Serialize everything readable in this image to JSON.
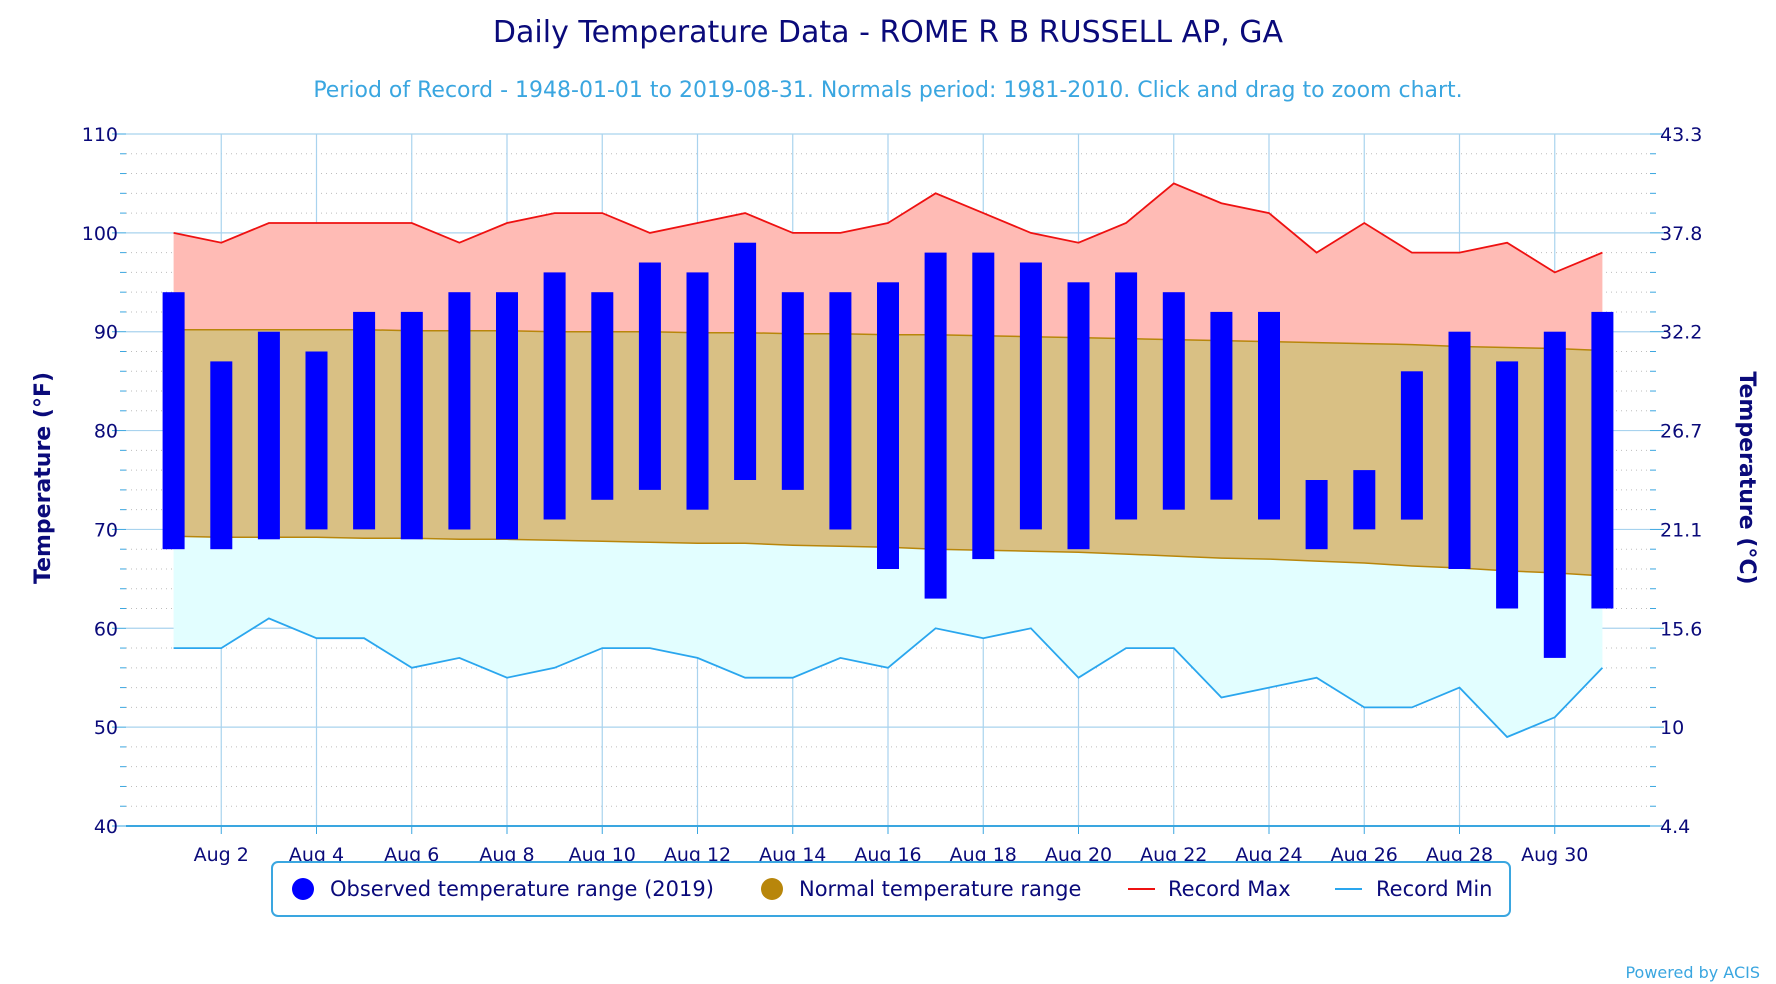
{
  "chart_data": {
    "type": "bar",
    "title": "Daily Temperature Data - ROME R B RUSSELL AP, GA",
    "subtitle": "Period of Record - 1948-01-01 to 2019-08-31. Normals period: 1981-2010. Click and drag to zoom chart.",
    "ylabel": "Temperature (°F)",
    "ylabel_right": "Temperature (°C)",
    "ylim": [
      40,
      110
    ],
    "y_ticks": [
      40,
      50,
      60,
      70,
      80,
      90,
      100,
      110
    ],
    "y_ticks_right": [
      "4.4",
      "10",
      "15.6",
      "21.1",
      "26.7",
      "32.2",
      "37.8",
      "43.3"
    ],
    "x_tick_days": [
      2,
      4,
      6,
      8,
      10,
      12,
      14,
      16,
      18,
      20,
      22,
      24,
      26,
      28,
      30
    ],
    "x_tick_labels": [
      "Aug 2",
      "Aug 4",
      "Aug 6",
      "Aug 8",
      "Aug 10",
      "Aug 12",
      "Aug 14",
      "Aug 16",
      "Aug 18",
      "Aug 20",
      "Aug 22",
      "Aug 24",
      "Aug 26",
      "Aug 28",
      "Aug 30"
    ],
    "xlim": [
      0,
      32
    ],
    "days": [
      1,
      2,
      3,
      4,
      5,
      6,
      7,
      8,
      9,
      10,
      11,
      12,
      13,
      14,
      15,
      16,
      17,
      18,
      19,
      20,
      21,
      22,
      23,
      24,
      25,
      26,
      27,
      28,
      29,
      30,
      31
    ],
    "grid": true,
    "legend_position": "bottom-center",
    "series": [
      {
        "name": "Observed temperature range (2019)",
        "type": "range-bar",
        "color": "#0000ff",
        "low": [
          68,
          68,
          69,
          70,
          70,
          69,
          70,
          69,
          71,
          73,
          74,
          72,
          75,
          74,
          70,
          66,
          63,
          67,
          70,
          68,
          71,
          72,
          73,
          71,
          68,
          70,
          71,
          66,
          62,
          57,
          62
        ],
        "high": [
          94,
          87,
          90,
          88,
          92,
          92,
          94,
          94,
          96,
          94,
          97,
          96,
          99,
          94,
          94,
          95,
          98,
          98,
          97,
          95,
          96,
          94,
          92,
          92,
          75,
          76,
          86,
          90,
          87,
          90,
          92
        ]
      },
      {
        "name": "Normal temperature range",
        "type": "area-range",
        "color": "#b8860b",
        "fill": "#d9c084",
        "low": [
          69.3,
          69.2,
          69.2,
          69.2,
          69.1,
          69.1,
          69.0,
          69.0,
          68.9,
          68.8,
          68.7,
          68.6,
          68.6,
          68.4,
          68.3,
          68.2,
          68.0,
          67.9,
          67.8,
          67.7,
          67.5,
          67.3,
          67.1,
          67.0,
          66.8,
          66.6,
          66.3,
          66.1,
          65.8,
          65.6,
          65.3
        ],
        "high": [
          90.2,
          90.2,
          90.2,
          90.2,
          90.2,
          90.1,
          90.1,
          90.1,
          90.0,
          90.0,
          90.0,
          89.9,
          89.9,
          89.8,
          89.8,
          89.7,
          89.7,
          89.6,
          89.5,
          89.4,
          89.3,
          89.2,
          89.1,
          89.0,
          88.9,
          88.8,
          88.7,
          88.5,
          88.4,
          88.3,
          88.1
        ]
      },
      {
        "name": "Record Max",
        "type": "line",
        "color": "#ee1111",
        "fill": "#ffbbb5",
        "values": [
          100,
          99,
          101,
          101,
          101,
          101,
          99,
          101,
          102,
          102,
          100,
          101,
          102,
          100,
          100,
          101,
          104,
          102,
          100,
          99,
          101,
          105,
          103,
          102,
          98,
          101,
          98,
          98,
          99,
          96,
          98
        ]
      },
      {
        "name": "Record Min",
        "type": "line",
        "color": "#2aa6ee",
        "fill": "#e2feff",
        "values": [
          58,
          58,
          61,
          59,
          59,
          56,
          57,
          55,
          56,
          58,
          58,
          57,
          55,
          55,
          57,
          56,
          60,
          59,
          60,
          55,
          58,
          58,
          53,
          54,
          55,
          52,
          52,
          54,
          49,
          51,
          56
        ]
      }
    ],
    "legend_items": [
      {
        "label": "Observed temperature range (2019)",
        "symbol": "circle",
        "color": "#0000ff"
      },
      {
        "label": "Normal temperature range",
        "symbol": "circle",
        "color": "#b8860b"
      },
      {
        "label": "Record Max",
        "symbol": "line",
        "color": "#ee1111"
      },
      {
        "label": "Record Min",
        "symbol": "line",
        "color": "#2aa6ee"
      }
    ],
    "credit": "Powered by ACIS"
  }
}
